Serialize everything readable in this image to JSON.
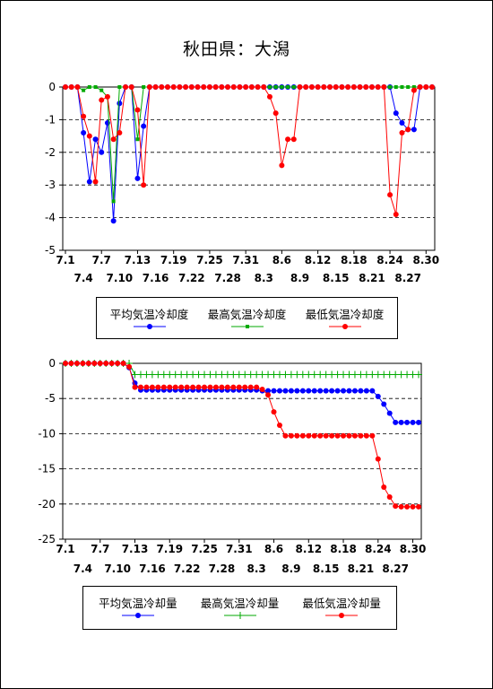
{
  "title": "秋田県：大潟",
  "colors": {
    "avg": "#0000ff",
    "max": "#00aa00",
    "min": "#ff0000"
  },
  "chart_data": [
    {
      "type": "line",
      "ylim": [
        -5,
        0
      ],
      "yticks": [
        0,
        -1,
        -2,
        -3,
        -4,
        -5
      ],
      "grid": "dashed horizontal",
      "x_start": "7.1",
      "x_end": "8.31",
      "xticks_row1": [
        "7.1",
        "7.7",
        "7.13",
        "7.19",
        "7.25",
        "7.31",
        "8.6",
        "8.12",
        "8.18",
        "8.24",
        "8.30"
      ],
      "xticks_row2": [
        "7.4",
        "7.10",
        "7.16",
        "7.22",
        "7.28",
        "8.3",
        "8.9",
        "8.15",
        "8.21",
        "8.27"
      ],
      "legend": {
        "entries": [
          {
            "label": "平均気温冷却度",
            "color": "#0000ff",
            "marker": "circle"
          },
          {
            "label": "最高気温冷却度",
            "color": "#00aa00",
            "marker": "square"
          },
          {
            "label": "最低気温冷却度",
            "color": "#ff0000",
            "marker": "circle"
          }
        ]
      },
      "series": [
        {
          "name": "平均気温冷却度",
          "color": "#0000ff",
          "marker": "circle",
          "values": [
            0,
            0,
            0,
            -1.4,
            -2.9,
            -1.6,
            -2.0,
            -1.1,
            -4.1,
            -0.5,
            0,
            0,
            -2.8,
            -1.2,
            0,
            0,
            0,
            0,
            0,
            0,
            0,
            0,
            0,
            0,
            0,
            0,
            0,
            0,
            0,
            0,
            0,
            0,
            0,
            0,
            0,
            0,
            0,
            0,
            0,
            0,
            0,
            0,
            0,
            0,
            0,
            0,
            0,
            0,
            0,
            0,
            0,
            0,
            0,
            0,
            0,
            -0.8,
            -1.1,
            -1.3,
            -1.3,
            0,
            0,
            0
          ]
        },
        {
          "name": "最高気温冷却度",
          "color": "#00aa00",
          "marker": "square",
          "values": [
            0,
            0,
            0,
            -0.1,
            0,
            0,
            -0.1,
            -0.3,
            -3.5,
            0,
            0,
            0,
            -1.6,
            0,
            0,
            0,
            0,
            0,
            0,
            0,
            0,
            0,
            0,
            0,
            0,
            0,
            0,
            0,
            0,
            0,
            0,
            0,
            0,
            0,
            0,
            0,
            0,
            0,
            0,
            0,
            0,
            0,
            0,
            0,
            0,
            0,
            0,
            0,
            0,
            0,
            0,
            0,
            0,
            0,
            0,
            0,
            0,
            0,
            0,
            0,
            0,
            0
          ]
        },
        {
          "name": "最低気温冷却度",
          "color": "#ff0000",
          "marker": "circle",
          "values": [
            0,
            0,
            0,
            -0.9,
            -1.5,
            -2.9,
            -0.4,
            -0.3,
            -1.6,
            -1.4,
            0,
            0,
            -0.7,
            -3.0,
            0,
            0,
            0,
            0,
            0,
            0,
            0,
            0,
            0,
            0,
            0,
            0,
            0,
            0,
            0,
            0,
            0,
            0,
            0,
            0,
            -0.3,
            -0.8,
            -2.4,
            -1.6,
            -1.6,
            0,
            0,
            0,
            0,
            0,
            0,
            0,
            0,
            0,
            0,
            0,
            0,
            0,
            0,
            0,
            -3.3,
            -3.9,
            -1.4,
            -1.3,
            -0.1,
            0,
            0,
            0
          ]
        }
      ]
    },
    {
      "type": "line",
      "ylim": [
        -25,
        0
      ],
      "yticks": [
        0,
        -5,
        -10,
        -15,
        -20,
        -25
      ],
      "grid": "dashed horizontal",
      "x_start": "7.1",
      "x_end": "8.31",
      "xticks_row1": [
        "7.1",
        "7.7",
        "7.13",
        "7.19",
        "7.25",
        "7.31",
        "8.6",
        "8.12",
        "8.18",
        "8.24",
        "8.30"
      ],
      "xticks_row2": [
        "7.4",
        "7.10",
        "7.16",
        "7.22",
        "7.28",
        "8.3",
        "8.9",
        "8.15",
        "8.21",
        "8.27"
      ],
      "legend": {
        "entries": [
          {
            "label": "平均気温冷却量",
            "color": "#0000ff",
            "marker": "circle"
          },
          {
            "label": "最高気温冷却量",
            "color": "#00aa00",
            "marker": "plus"
          },
          {
            "label": "最低気温冷却量",
            "color": "#ff0000",
            "marker": "circle"
          }
        ]
      },
      "series": [
        {
          "name": "平均気温冷却量",
          "color": "#0000ff",
          "marker": "circle",
          "values": [
            0,
            0,
            0,
            0,
            0,
            0,
            0,
            0,
            0,
            0,
            0,
            -0.6,
            -2.8,
            -3.8,
            -3.8,
            -3.8,
            -3.8,
            -3.8,
            -3.8,
            -3.8,
            -3.8,
            -3.8,
            -3.8,
            -3.8,
            -3.8,
            -3.8,
            -3.8,
            -3.8,
            -3.8,
            -3.8,
            -3.8,
            -3.8,
            -3.8,
            -3.8,
            -3.9,
            -3.9,
            -3.9,
            -3.9,
            -3.9,
            -3.9,
            -3.9,
            -3.9,
            -3.9,
            -3.9,
            -3.9,
            -3.9,
            -3.9,
            -3.9,
            -3.9,
            -3.9,
            -3.9,
            -3.9,
            -3.9,
            -3.9,
            -4.7,
            -5.8,
            -7.1,
            -8.4,
            -8.4,
            -8.4,
            -8.4,
            -8.4
          ]
        },
        {
          "name": "最高気温冷却量",
          "color": "#00aa00",
          "marker": "plus",
          "values": [
            0,
            0,
            0,
            0,
            0,
            0,
            0,
            0,
            0,
            0,
            0,
            0,
            -1.6,
            -1.6,
            -1.6,
            -1.6,
            -1.6,
            -1.6,
            -1.6,
            -1.6,
            -1.6,
            -1.6,
            -1.6,
            -1.6,
            -1.6,
            -1.6,
            -1.6,
            -1.6,
            -1.6,
            -1.6,
            -1.6,
            -1.6,
            -1.6,
            -1.6,
            -1.6,
            -1.6,
            -1.6,
            -1.6,
            -1.6,
            -1.6,
            -1.6,
            -1.6,
            -1.6,
            -1.6,
            -1.6,
            -1.6,
            -1.6,
            -1.6,
            -1.6,
            -1.6,
            -1.6,
            -1.6,
            -1.6,
            -1.6,
            -1.6,
            -1.6,
            -1.6,
            -1.6,
            -1.6,
            -1.6,
            -1.6,
            -1.6
          ]
        },
        {
          "name": "最低気温冷却量",
          "color": "#ff0000",
          "marker": "circle",
          "values": [
            0,
            0,
            0,
            0,
            0,
            0,
            0,
            0,
            0,
            0,
            0,
            -0.5,
            -3.4,
            -3.4,
            -3.4,
            -3.4,
            -3.4,
            -3.4,
            -3.4,
            -3.4,
            -3.4,
            -3.4,
            -3.4,
            -3.4,
            -3.4,
            -3.4,
            -3.4,
            -3.4,
            -3.4,
            -3.4,
            -3.4,
            -3.4,
            -3.4,
            -3.4,
            -3.7,
            -4.5,
            -6.9,
            -8.8,
            -10.3,
            -10.3,
            -10.3,
            -10.3,
            -10.3,
            -10.3,
            -10.3,
            -10.3,
            -10.3,
            -10.3,
            -10.3,
            -10.3,
            -10.3,
            -10.3,
            -10.3,
            -10.3,
            -13.6,
            -17.6,
            -19.0,
            -20.3,
            -20.4,
            -20.4,
            -20.4,
            -20.4
          ]
        }
      ]
    }
  ]
}
